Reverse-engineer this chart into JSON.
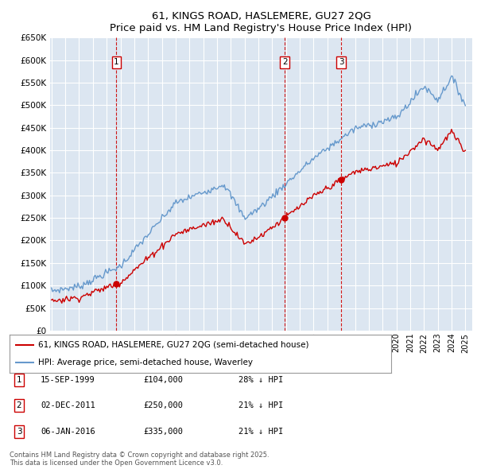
{
  "title": "61, KINGS ROAD, HASLEMERE, GU27 2QG",
  "subtitle": "Price paid vs. HM Land Registry's House Price Index (HPI)",
  "ylabel_ticks": [
    "£0",
    "£50K",
    "£100K",
    "£150K",
    "£200K",
    "£250K",
    "£300K",
    "£350K",
    "£400K",
    "£450K",
    "£500K",
    "£550K",
    "£600K",
    "£650K"
  ],
  "ylim": [
    0,
    650000
  ],
  "ytick_vals": [
    0,
    50000,
    100000,
    150000,
    200000,
    250000,
    300000,
    350000,
    400000,
    450000,
    500000,
    550000,
    600000,
    650000
  ],
  "xlim_start": 1994.9,
  "xlim_end": 2025.5,
  "sale_dates": [
    1999.71,
    2011.92,
    2016.01
  ],
  "sale_prices": [
    104000,
    250000,
    335000
  ],
  "sale_labels": [
    "1",
    "2",
    "3"
  ],
  "legend_line1": "61, KINGS ROAD, HASLEMERE, GU27 2QG (semi-detached house)",
  "legend_line2": "HPI: Average price, semi-detached house, Waverley",
  "table_entries": [
    {
      "num": "1",
      "date": "15-SEP-1999",
      "price": "£104,000",
      "note": "28% ↓ HPI"
    },
    {
      "num": "2",
      "date": "02-DEC-2011",
      "price": "£250,000",
      "note": "21% ↓ HPI"
    },
    {
      "num": "3",
      "date": "06-JAN-2016",
      "price": "£335,000",
      "note": "21% ↓ HPI"
    }
  ],
  "footnote": "Contains HM Land Registry data © Crown copyright and database right 2025.\nThis data is licensed under the Open Government Licence v3.0.",
  "bg_color": "#dce6f1",
  "grid_color": "#ffffff",
  "red_color": "#cc0000",
  "blue_color": "#6699cc"
}
